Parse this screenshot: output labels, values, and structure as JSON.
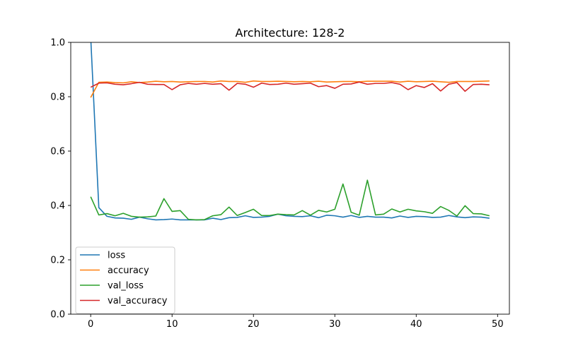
{
  "chart_data": {
    "type": "line",
    "title": "Architecture: 128-2",
    "xlabel": "",
    "ylabel": "",
    "xlim": [
      -2.45,
      51.45
    ],
    "ylim": [
      0,
      1.0
    ],
    "xticks": [
      0,
      10,
      20,
      30,
      40,
      50
    ],
    "yticks": [
      0.0,
      0.2,
      0.4,
      0.6,
      0.8,
      1.0
    ],
    "grid": false,
    "legend_position": "lower-left",
    "x": [
      0,
      1,
      2,
      3,
      4,
      5,
      6,
      7,
      8,
      9,
      10,
      11,
      12,
      13,
      14,
      15,
      16,
      17,
      18,
      19,
      20,
      21,
      22,
      23,
      24,
      25,
      26,
      27,
      28,
      29,
      30,
      31,
      32,
      33,
      34,
      35,
      36,
      37,
      38,
      39,
      40,
      41,
      42,
      43,
      44,
      45,
      46,
      47,
      48,
      49
    ],
    "series": [
      {
        "name": "loss",
        "color": "#1f77b4",
        "values": [
          1.02,
          0.392,
          0.36,
          0.354,
          0.353,
          0.349,
          0.357,
          0.351,
          0.347,
          0.348,
          0.35,
          0.347,
          0.347,
          0.347,
          0.347,
          0.353,
          0.348,
          0.355,
          0.356,
          0.362,
          0.356,
          0.357,
          0.36,
          0.368,
          0.362,
          0.36,
          0.359,
          0.362,
          0.355,
          0.364,
          0.362,
          0.357,
          0.363,
          0.356,
          0.36,
          0.357,
          0.357,
          0.354,
          0.361,
          0.356,
          0.36,
          0.359,
          0.356,
          0.357,
          0.363,
          0.358,
          0.355,
          0.358,
          0.357,
          0.353
        ]
      },
      {
        "name": "accuracy",
        "color": "#ff7f0e",
        "values": [
          0.797,
          0.853,
          0.854,
          0.852,
          0.851,
          0.855,
          0.852,
          0.854,
          0.857,
          0.855,
          0.856,
          0.854,
          0.855,
          0.856,
          0.856,
          0.854,
          0.858,
          0.856,
          0.856,
          0.853,
          0.858,
          0.856,
          0.856,
          0.857,
          0.856,
          0.855,
          0.856,
          0.855,
          0.857,
          0.854,
          0.855,
          0.856,
          0.856,
          0.855,
          0.857,
          0.857,
          0.857,
          0.857,
          0.854,
          0.857,
          0.855,
          0.856,
          0.857,
          0.855,
          0.853,
          0.856,
          0.856,
          0.856,
          0.857,
          0.858
        ]
      },
      {
        "name": "val_loss",
        "color": "#2ca02c",
        "values": [
          0.432,
          0.365,
          0.37,
          0.362,
          0.371,
          0.36,
          0.357,
          0.358,
          0.361,
          0.425,
          0.378,
          0.381,
          0.349,
          0.347,
          0.348,
          0.362,
          0.366,
          0.394,
          0.363,
          0.374,
          0.386,
          0.363,
          0.363,
          0.368,
          0.366,
          0.365,
          0.381,
          0.364,
          0.382,
          0.376,
          0.386,
          0.479,
          0.375,
          0.364,
          0.493,
          0.365,
          0.368,
          0.387,
          0.376,
          0.386,
          0.38,
          0.377,
          0.371,
          0.396,
          0.382,
          0.361,
          0.399,
          0.37,
          0.369,
          0.362
        ]
      },
      {
        "name": "val_accuracy",
        "color": "#d62728",
        "values": [
          0.835,
          0.85,
          0.851,
          0.846,
          0.844,
          0.848,
          0.853,
          0.846,
          0.845,
          0.845,
          0.826,
          0.844,
          0.849,
          0.846,
          0.849,
          0.846,
          0.848,
          0.824,
          0.849,
          0.846,
          0.835,
          0.85,
          0.845,
          0.846,
          0.85,
          0.846,
          0.848,
          0.85,
          0.837,
          0.841,
          0.831,
          0.846,
          0.847,
          0.854,
          0.846,
          0.849,
          0.849,
          0.852,
          0.846,
          0.826,
          0.841,
          0.834,
          0.848,
          0.821,
          0.846,
          0.852,
          0.82,
          0.845,
          0.846,
          0.844
        ]
      }
    ]
  }
}
